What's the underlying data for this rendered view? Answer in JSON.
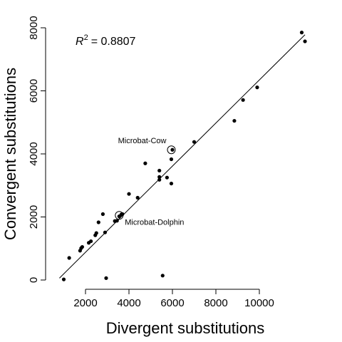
{
  "chart_data": {
    "type": "scatter",
    "xlabel": "Divergent substitutions",
    "ylabel": "Convergent substitutions",
    "xlim": [
      750,
      12300
    ],
    "ylim": [
      -300,
      8000
    ],
    "x_ticks": [
      2000,
      4000,
      6000,
      8000,
      10000
    ],
    "y_ticks": [
      0,
      2000,
      4000,
      6000,
      8000
    ],
    "grid": false,
    "legend": "none",
    "r_squared": {
      "symbol": "R",
      "exponent": "2",
      "value": "= 0.8807"
    },
    "fit_line": {
      "x": [
        800,
        12100
      ],
      "y": [
        60,
        7780
      ]
    },
    "points": [
      {
        "x": 1000,
        "y": 20
      },
      {
        "x": 1250,
        "y": 700
      },
      {
        "x": 1750,
        "y": 930
      },
      {
        "x": 1800,
        "y": 1010
      },
      {
        "x": 1850,
        "y": 1050
      },
      {
        "x": 2150,
        "y": 1180
      },
      {
        "x": 2250,
        "y": 1230
      },
      {
        "x": 2450,
        "y": 1420
      },
      {
        "x": 2500,
        "y": 1490
      },
      {
        "x": 2600,
        "y": 1830
      },
      {
        "x": 2800,
        "y": 2090
      },
      {
        "x": 2900,
        "y": 1510
      },
      {
        "x": 2950,
        "y": 60
      },
      {
        "x": 3350,
        "y": 1870
      },
      {
        "x": 3450,
        "y": 1880
      },
      {
        "x": 3550,
        "y": 2020
      },
      {
        "x": 3650,
        "y": 2080
      },
      {
        "x": 3700,
        "y": 2090
      },
      {
        "x": 4000,
        "y": 2730
      },
      {
        "x": 4400,
        "y": 2610
      },
      {
        "x": 4750,
        "y": 3700
      },
      {
        "x": 5400,
        "y": 3180
      },
      {
        "x": 5400,
        "y": 3270
      },
      {
        "x": 5400,
        "y": 3470
      },
      {
        "x": 5550,
        "y": 140
      },
      {
        "x": 5750,
        "y": 3250
      },
      {
        "x": 5950,
        "y": 3060
      },
      {
        "x": 5950,
        "y": 3830
      },
      {
        "x": 6000,
        "y": 4130
      },
      {
        "x": 7000,
        "y": 4380
      },
      {
        "x": 8850,
        "y": 5050
      },
      {
        "x": 9250,
        "y": 5710
      },
      {
        "x": 9900,
        "y": 6110
      },
      {
        "x": 11950,
        "y": 7850
      },
      {
        "x": 12100,
        "y": 7570
      }
    ],
    "annotations": [
      {
        "label": "Microbat-Cow",
        "x": 5950,
        "y": 4130
      },
      {
        "label": "Microbat-Dolphin",
        "x": 3550,
        "y": 2050
      }
    ]
  }
}
